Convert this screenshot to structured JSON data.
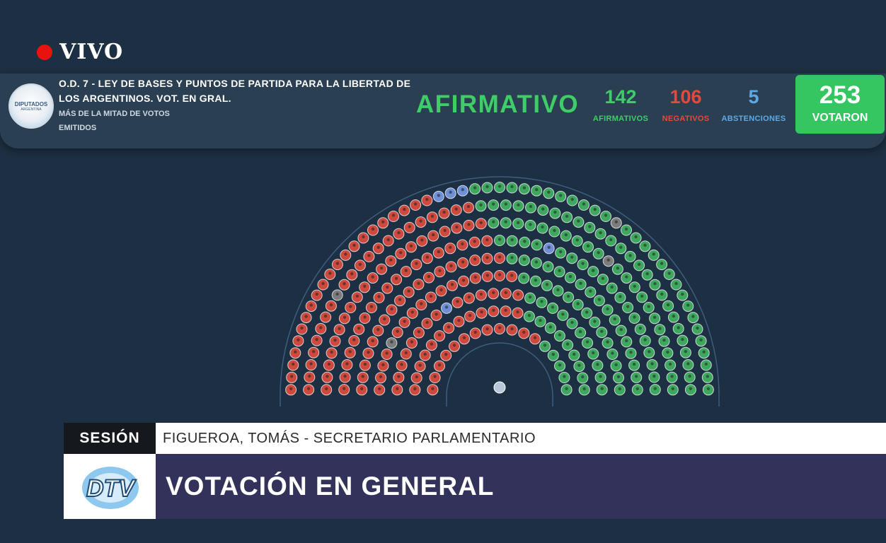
{
  "live": {
    "label": "VIVO"
  },
  "session": {
    "bill_title": "O.D. 7 - LEY DE BASES Y PUNTOS DE PARTIDA PARA LA LIBERTAD DE LOS ARGENTINOS. VOT. EN GRAL.",
    "majority_rule": "MÁS DE LA MITAD DE VOTOS EMITIDOS",
    "chamber_logo_text": "DIPUTADOS",
    "chamber_logo_subtext": "ARGENTINA"
  },
  "result": {
    "label": "AFIRMATIVO",
    "affirmative": {
      "count": "142",
      "label": "AFIRMATIVOS",
      "color": "#3fcd68"
    },
    "negative": {
      "count": "106",
      "label": "NEGATIVOS",
      "color": "#e34a3c"
    },
    "abstention": {
      "count": "5",
      "label": "ABSTENCIONES",
      "color": "#5da9e6"
    },
    "voted": {
      "count": "253",
      "label": "VOTARON",
      "color": "#35c561"
    }
  },
  "hemicycle": {
    "seat_colors": {
      "affirmative": "#3fa85f",
      "negative": "#cf4a3e",
      "abstention": "#6f8fd6",
      "absent": "#7d7d7d",
      "president": "#b8c7da"
    }
  },
  "lower_third": {
    "tag": "SESIÓN",
    "speaker": "FIGUEROA, TOMÁS - SECRETARIO PARLAMENTARIO",
    "headline": "VOTACIÓN EN GENERAL",
    "channel_logo": "DTV"
  }
}
